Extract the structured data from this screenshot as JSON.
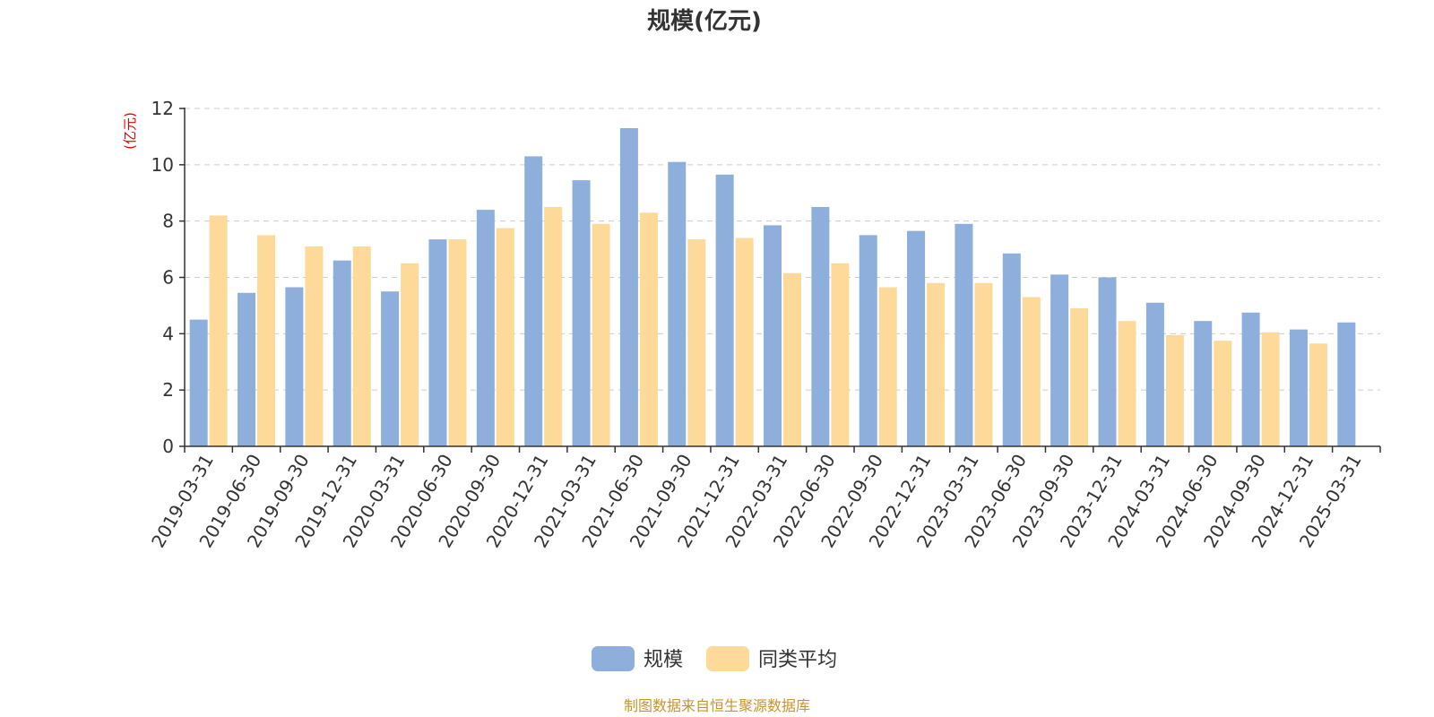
{
  "colors": {
    "series_0": "#8eaedb",
    "series_1": "#fdd99a",
    "source": "#c8952a",
    "unit": "#e00000"
  },
  "source_text": "制图数据来自恒生聚源数据库",
  "chart_data": {
    "type": "bar",
    "title": "规模(亿元)",
    "ylabel": "(亿元)",
    "xlabel": "",
    "ylim": [
      0,
      12
    ],
    "yticks": [
      0,
      2,
      4,
      6,
      8,
      10,
      12
    ],
    "grid": true,
    "legend_position": "bottom-center",
    "categories": [
      "2019-03-31",
      "2019-06-30",
      "2019-09-30",
      "2019-12-31",
      "2020-03-31",
      "2020-06-30",
      "2020-09-30",
      "2020-12-31",
      "2021-03-31",
      "2021-06-30",
      "2021-09-30",
      "2021-12-31",
      "2022-03-31",
      "2022-06-30",
      "2022-09-30",
      "2022-12-31",
      "2023-03-31",
      "2023-06-30",
      "2023-09-30",
      "2023-12-31",
      "2024-03-31",
      "2024-06-30",
      "2024-09-30",
      "2024-12-31",
      "2025-03-31"
    ],
    "series": [
      {
        "name": "规模",
        "values": [
          4.5,
          5.45,
          5.65,
          6.6,
          5.5,
          7.35,
          8.4,
          10.3,
          9.45,
          11.3,
          10.1,
          9.65,
          7.85,
          8.5,
          7.5,
          7.65,
          7.9,
          6.85,
          6.1,
          6.0,
          5.1,
          4.45,
          4.75,
          4.15,
          4.4
        ]
      },
      {
        "name": "同类平均",
        "values": [
          8.2,
          7.5,
          7.1,
          7.1,
          6.5,
          7.35,
          7.75,
          8.5,
          7.9,
          8.3,
          7.35,
          7.4,
          6.15,
          6.5,
          5.65,
          5.8,
          5.8,
          5.3,
          4.9,
          4.45,
          3.95,
          3.75,
          4.05,
          3.65,
          null
        ]
      }
    ]
  }
}
